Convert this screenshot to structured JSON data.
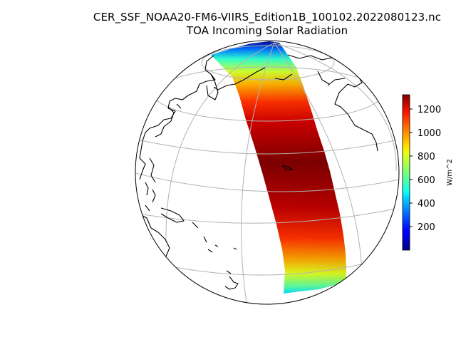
{
  "title": {
    "line1": "CER_SSF_NOAA20-FM6-VIIRS_Edition1B_100102.2022080123.nc",
    "line2": "TOA Incoming Solar Radiation"
  },
  "colorbar": {
    "label": "W/m^2",
    "colormap": "jet",
    "ticks": [
      "200",
      "400",
      "600",
      "800",
      "1000",
      "1200"
    ],
    "range": [
      0,
      1330
    ]
  },
  "map": {
    "projection": "orthographic",
    "graticule": true,
    "coastlines": true,
    "swath": "single satellite swath spanning pole to southern mid-latitudes",
    "colors": {
      "coast": "#000000",
      "grid": "#b3b3b3",
      "background": "#ffffff"
    }
  }
}
